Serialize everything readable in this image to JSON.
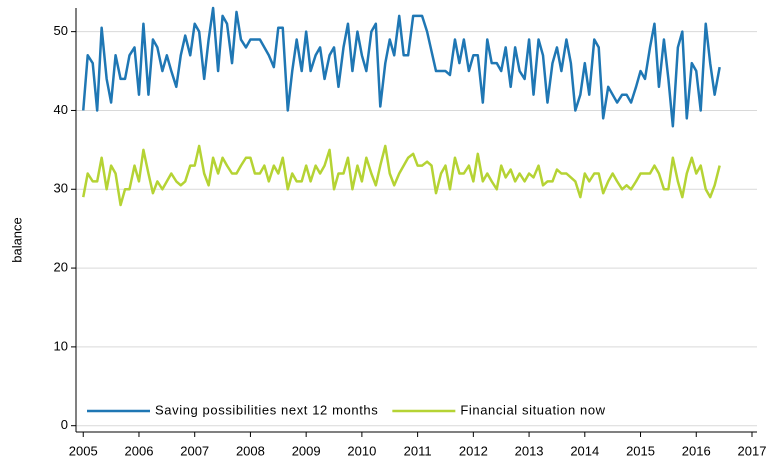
{
  "chart_data": {
    "type": "line",
    "y_label": "balance",
    "x": [
      2005,
      2005.08,
      2005.17,
      2005.25,
      2005.33,
      2005.42,
      2005.5,
      2005.58,
      2005.67,
      2005.75,
      2005.83,
      2005.92,
      2006,
      2006.08,
      2006.17,
      2006.25,
      2006.33,
      2006.42,
      2006.5,
      2006.58,
      2006.67,
      2006.75,
      2006.83,
      2006.92,
      2007,
      2007.08,
      2007.17,
      2007.25,
      2007.33,
      2007.42,
      2007.5,
      2007.58,
      2007.67,
      2007.75,
      2007.83,
      2007.92,
      2008,
      2008.08,
      2008.17,
      2008.25,
      2008.33,
      2008.42,
      2008.5,
      2008.58,
      2008.67,
      2008.75,
      2008.83,
      2008.92,
      2009,
      2009.08,
      2009.17,
      2009.25,
      2009.33,
      2009.42,
      2009.5,
      2009.58,
      2009.67,
      2009.75,
      2009.83,
      2009.92,
      2010,
      2010.08,
      2010.17,
      2010.25,
      2010.33,
      2010.42,
      2010.5,
      2010.58,
      2010.67,
      2010.75,
      2010.83,
      2010.92,
      2011,
      2011.08,
      2011.17,
      2011.25,
      2011.33,
      2011.42,
      2011.5,
      2011.58,
      2011.67,
      2011.75,
      2011.83,
      2011.92,
      2012,
      2012.08,
      2012.17,
      2012.25,
      2012.33,
      2012.42,
      2012.5,
      2012.58,
      2012.67,
      2012.75,
      2012.83,
      2012.92,
      2013,
      2013.08,
      2013.17,
      2013.25,
      2013.33,
      2013.42,
      2013.5,
      2013.58,
      2013.67,
      2013.75,
      2013.83,
      2013.92,
      2014,
      2014.08,
      2014.17,
      2014.25,
      2014.33,
      2014.42,
      2014.5,
      2014.58,
      2014.67,
      2014.75,
      2014.83,
      2014.92,
      2015,
      2015.08,
      2015.17,
      2015.25,
      2015.33,
      2015.42,
      2015.5,
      2015.58,
      2015.67,
      2015.75,
      2015.83,
      2015.92,
      2016,
      2016.08,
      2016.17,
      2016.25,
      2016.33,
      2016.42
    ],
    "series": [
      {
        "name": "Saving possibilities next 12 months",
        "color": "#1f77b4",
        "values": [
          40,
          47,
          46,
          40,
          50.5,
          44,
          41,
          47,
          44,
          44,
          47,
          48,
          42,
          51,
          42,
          49,
          48,
          45,
          47,
          45,
          43,
          47,
          49.5,
          47,
          51,
          50,
          44,
          49,
          53,
          45,
          52,
          51,
          46,
          52.5,
          49,
          48,
          49,
          49,
          49,
          48,
          47,
          45.5,
          50.5,
          50.5,
          40,
          45,
          49,
          45,
          50,
          45,
          47,
          48,
          44,
          47,
          48,
          43,
          48,
          51,
          45,
          50,
          47,
          45,
          50,
          51,
          40.5,
          46,
          49,
          47,
          52,
          47,
          47,
          52,
          52,
          52,
          50,
          47.5,
          45,
          45,
          45,
          44.5,
          49,
          46,
          49,
          45,
          47,
          47,
          41,
          49,
          46,
          46,
          45,
          48,
          43,
          48,
          45,
          44,
          49,
          42,
          49,
          47,
          41,
          46,
          48,
          45,
          49,
          46,
          40,
          42,
          46,
          42,
          49,
          48,
          39,
          43,
          42,
          41,
          42,
          42,
          41,
          43,
          45,
          44,
          48,
          51,
          43,
          49,
          44,
          38,
          48,
          50,
          39,
          46,
          45,
          40,
          51,
          46,
          42,
          45.5
        ]
      },
      {
        "name": "Financial situation now",
        "color": "#b5d334",
        "values": [
          29,
          32,
          31,
          31,
          34,
          30,
          33,
          32,
          28,
          30,
          30,
          33,
          31,
          35,
          32,
          29.5,
          31,
          30,
          31,
          32,
          31,
          30.5,
          31,
          33,
          33,
          35.5,
          32,
          30.5,
          34,
          32,
          34,
          33,
          32,
          32,
          33,
          34,
          34,
          32,
          32,
          33,
          31,
          33,
          32,
          34,
          30,
          32,
          31,
          31,
          33,
          31,
          33,
          32,
          33,
          35,
          30,
          32,
          32,
          34,
          30,
          33,
          31,
          34,
          32,
          30.5,
          33,
          35.5,
          32,
          30.5,
          32,
          33,
          34,
          34.5,
          33,
          33,
          33.5,
          33,
          29.5,
          32,
          33,
          30,
          34,
          32,
          32,
          33,
          31,
          34.5,
          31,
          32,
          31,
          30,
          33,
          31.5,
          32.5,
          31,
          32,
          31,
          32,
          31.5,
          33,
          30.5,
          31,
          31,
          32.5,
          32,
          32,
          31.5,
          31,
          29,
          32,
          31,
          32,
          32,
          29.5,
          31,
          32,
          31,
          30,
          30.5,
          30,
          31,
          32,
          32,
          32,
          33,
          32,
          30,
          30,
          34,
          31,
          29,
          32,
          34,
          32,
          33,
          30,
          29,
          30.5,
          33
        ]
      }
    ],
    "xlim": [
      2004.87,
      2017.09
    ],
    "xticks": [
      2005,
      2006,
      2007,
      2008,
      2009,
      2010,
      2011,
      2012,
      2013,
      2014,
      2015,
      2016,
      2017
    ],
    "ylim": [
      -0.8,
      53
    ],
    "yticks": [
      0,
      10,
      20,
      30,
      40,
      50
    ],
    "grid": true,
    "legend": "lower left"
  }
}
